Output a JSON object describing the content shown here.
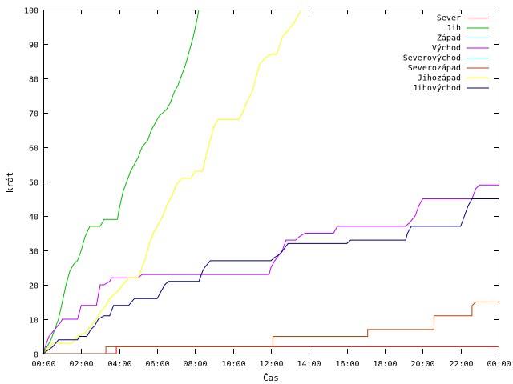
{
  "chart_data": {
    "type": "line",
    "title": "",
    "xlabel": "Čas",
    "ylabel": "krát",
    "xlim": [
      0,
      24
    ],
    "ylim": [
      0,
      100
    ],
    "x_ticks": [
      "00:00",
      "02:00",
      "04:00",
      "06:00",
      "08:00",
      "10:00",
      "12:00",
      "14:00",
      "16:00",
      "18:00",
      "20:00",
      "22:00",
      "00:00"
    ],
    "y_ticks": [
      0,
      10,
      20,
      30,
      40,
      50,
      60,
      70,
      80,
      90,
      100
    ],
    "grid": false,
    "legend_position": "top-right",
    "series": [
      {
        "name": "Sever",
        "color": "#ff0000",
        "points": [
          [
            0,
            0
          ],
          [
            3.85,
            0
          ],
          [
            3.85,
            2
          ],
          [
            24,
            2
          ]
        ]
      },
      {
        "name": "Jih",
        "color": "#00c000",
        "points": [
          [
            0,
            0
          ],
          [
            0.2,
            2
          ],
          [
            0.4,
            4
          ],
          [
            0.6,
            7
          ],
          [
            0.8,
            10
          ],
          [
            1.0,
            15
          ],
          [
            1.2,
            20
          ],
          [
            1.4,
            24
          ],
          [
            1.6,
            26
          ],
          [
            1.8,
            27
          ],
          [
            2.0,
            30
          ],
          [
            2.2,
            34
          ],
          [
            2.45,
            37
          ],
          [
            2.7,
            37
          ],
          [
            3.0,
            37
          ],
          [
            3.1,
            38
          ],
          [
            3.2,
            39
          ],
          [
            3.9,
            39
          ],
          [
            4.0,
            42
          ],
          [
            4.2,
            47
          ],
          [
            4.4,
            50
          ],
          [
            4.6,
            53
          ],
          [
            4.8,
            55
          ],
          [
            5.0,
            57
          ],
          [
            5.2,
            60
          ],
          [
            5.5,
            62
          ],
          [
            5.7,
            65
          ],
          [
            5.9,
            67
          ],
          [
            6.1,
            69
          ],
          [
            6.5,
            71
          ],
          [
            6.7,
            73
          ],
          [
            6.9,
            76
          ],
          [
            7.1,
            78
          ],
          [
            7.3,
            81
          ],
          [
            7.5,
            84
          ],
          [
            7.7,
            88
          ],
          [
            7.9,
            92
          ],
          [
            8.1,
            97
          ],
          [
            8.2,
            100
          ]
        ]
      },
      {
        "name": "Západ",
        "color": "#0080ff",
        "points": []
      },
      {
        "name": "Východ",
        "color": "#c000ff",
        "points": [
          [
            0,
            0
          ],
          [
            0.1,
            2
          ],
          [
            0.3,
            5
          ],
          [
            0.6,
            7
          ],
          [
            0.9,
            9
          ],
          [
            1.0,
            10
          ],
          [
            1.8,
            10
          ],
          [
            1.9,
            12
          ],
          [
            2.0,
            14
          ],
          [
            2.8,
            14
          ],
          [
            2.9,
            17
          ],
          [
            3.0,
            20
          ],
          [
            3.2,
            20
          ],
          [
            3.5,
            21
          ],
          [
            3.6,
            22
          ],
          [
            4.5,
            22
          ],
          [
            5.0,
            22
          ],
          [
            5.2,
            23
          ],
          [
            11.9,
            23
          ],
          [
            12.0,
            25
          ],
          [
            12.2,
            27
          ],
          [
            12.6,
            30
          ],
          [
            12.8,
            33
          ],
          [
            13.3,
            33
          ],
          [
            13.5,
            34
          ],
          [
            13.8,
            35
          ],
          [
            15.3,
            35
          ],
          [
            15.5,
            37
          ],
          [
            19.1,
            37
          ],
          [
            19.3,
            38
          ],
          [
            19.6,
            40
          ],
          [
            19.8,
            43
          ],
          [
            20.0,
            45
          ],
          [
            20.4,
            45
          ],
          [
            22.6,
            45
          ],
          [
            22.8,
            48
          ],
          [
            23.0,
            49
          ],
          [
            24,
            49
          ]
        ]
      },
      {
        "name": "Severovýchod",
        "color": "#00c0c0",
        "points": []
      },
      {
        "name": "Severozápad",
        "color": "#c04000",
        "points": [
          [
            0,
            0
          ],
          [
            3.3,
            0
          ],
          [
            3.3,
            2
          ],
          [
            4.0,
            2
          ],
          [
            12.1,
            2
          ],
          [
            12.1,
            5
          ],
          [
            17.1,
            5
          ],
          [
            17.1,
            7
          ],
          [
            20.6,
            7
          ],
          [
            20.6,
            11
          ],
          [
            22.6,
            11
          ],
          [
            22.6,
            14
          ],
          [
            22.8,
            15
          ],
          [
            24,
            15
          ]
        ]
      },
      {
        "name": "Jihozápad",
        "color": "#ffff00",
        "points": [
          [
            0,
            0
          ],
          [
            0.5,
            3
          ],
          [
            1.5,
            3
          ],
          [
            1.8,
            5
          ],
          [
            2.2,
            6
          ],
          [
            2.5,
            8
          ],
          [
            2.8,
            10
          ],
          [
            3.0,
            12
          ],
          [
            3.3,
            14
          ],
          [
            3.5,
            16
          ],
          [
            3.9,
            18
          ],
          [
            4.2,
            20
          ],
          [
            4.5,
            22
          ],
          [
            5.0,
            22
          ],
          [
            5.2,
            25
          ],
          [
            5.4,
            28
          ],
          [
            5.6,
            32
          ],
          [
            5.8,
            35
          ],
          [
            6.0,
            37
          ],
          [
            6.3,
            40
          ],
          [
            6.5,
            43
          ],
          [
            6.8,
            46
          ],
          [
            7.0,
            49
          ],
          [
            7.3,
            51
          ],
          [
            7.8,
            51
          ],
          [
            8.0,
            53
          ],
          [
            8.4,
            53
          ],
          [
            8.6,
            58
          ],
          [
            8.8,
            62
          ],
          [
            9.0,
            66
          ],
          [
            9.2,
            68
          ],
          [
            10.3,
            68
          ],
          [
            10.5,
            70
          ],
          [
            10.8,
            74
          ],
          [
            11.0,
            76
          ],
          [
            11.2,
            80
          ],
          [
            11.4,
            84
          ],
          [
            11.7,
            86
          ],
          [
            12.0,
            87
          ],
          [
            12.3,
            87
          ],
          [
            12.6,
            92
          ],
          [
            12.9,
            94
          ],
          [
            13.2,
            96
          ],
          [
            13.4,
            98
          ],
          [
            13.6,
            100
          ]
        ]
      },
      {
        "name": "Jihovýchod",
        "color": "#000080",
        "points": [
          [
            0,
            0
          ],
          [
            0.5,
            2
          ],
          [
            0.8,
            4
          ],
          [
            1.0,
            4
          ],
          [
            1.2,
            4
          ],
          [
            1.8,
            4
          ],
          [
            1.9,
            5
          ],
          [
            2.3,
            5
          ],
          [
            2.5,
            7
          ],
          [
            2.7,
            8
          ],
          [
            2.9,
            10
          ],
          [
            3.2,
            11
          ],
          [
            3.5,
            11
          ],
          [
            3.7,
            14
          ],
          [
            4.5,
            14
          ],
          [
            4.8,
            16
          ],
          [
            6.0,
            16
          ],
          [
            6.2,
            18
          ],
          [
            6.4,
            20
          ],
          [
            6.6,
            21
          ],
          [
            7.5,
            21
          ],
          [
            8.2,
            21
          ],
          [
            8.4,
            24
          ],
          [
            8.5,
            25
          ],
          [
            8.8,
            27
          ],
          [
            11.7,
            27
          ],
          [
            12.0,
            27
          ],
          [
            12.2,
            28
          ],
          [
            12.5,
            29
          ],
          [
            12.9,
            32
          ],
          [
            16.0,
            32
          ],
          [
            16.2,
            33
          ],
          [
            19.1,
            33
          ],
          [
            19.2,
            35
          ],
          [
            19.4,
            37
          ],
          [
            22.0,
            37
          ],
          [
            22.2,
            40
          ],
          [
            22.4,
            43
          ],
          [
            22.6,
            45
          ],
          [
            24,
            45
          ]
        ]
      }
    ]
  }
}
